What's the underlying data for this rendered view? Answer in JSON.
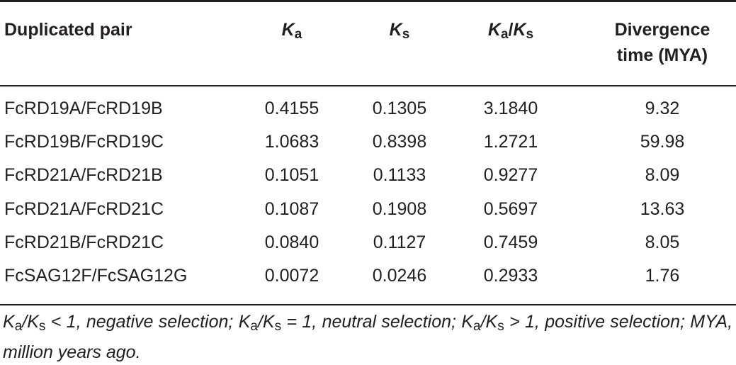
{
  "table": {
    "headers": {
      "pair": "Duplicated pair",
      "ka_main": "K",
      "ka_sub": "a",
      "ks_main": "K",
      "ks_sub": "s",
      "kaks_main1": "K",
      "kaks_sub1": "a",
      "kaks_slash": "/",
      "kaks_main2": "K",
      "kaks_sub2": "s",
      "divergence_line1": "Divergence",
      "divergence_line2": "time (MYA)"
    },
    "rows": [
      {
        "pair": "FcRD19A/FcRD19B",
        "ka": "0.4155",
        "ks": "0.1305",
        "kaks": "3.1840",
        "divergence": "9.32"
      },
      {
        "pair": "FcRD19B/FcRD19C",
        "ka": "1.0683",
        "ks": "0.8398",
        "kaks": "1.2721",
        "divergence": "59.98"
      },
      {
        "pair": "FcRD21A/FcRD21B",
        "ka": "0.1051",
        "ks": "0.1133",
        "kaks": "0.9277",
        "divergence": "8.09"
      },
      {
        "pair": "FcRD21A/FcRD21C",
        "ka": "0.1087",
        "ks": "0.1908",
        "kaks": "0.5697",
        "divergence": "13.63"
      },
      {
        "pair": "FcRD21B/FcRD21C",
        "ka": "0.0840",
        "ks": "0.1127",
        "kaks": "0.7459",
        "divergence": "8.05"
      },
      {
        "pair": "FcSAG12F/FcSAG12G",
        "ka": "0.0072",
        "ks": "0.0246",
        "kaks": "0.2933",
        "divergence": "1.76"
      }
    ]
  },
  "footnote": {
    "k": "K",
    "a": "a",
    "slash": "/",
    "s": "s",
    "part1": " < 1, negative selection; ",
    "part2": " = 1, neutral selection; ",
    "part3": " > 1, positive selection; MYA, million years ago."
  }
}
